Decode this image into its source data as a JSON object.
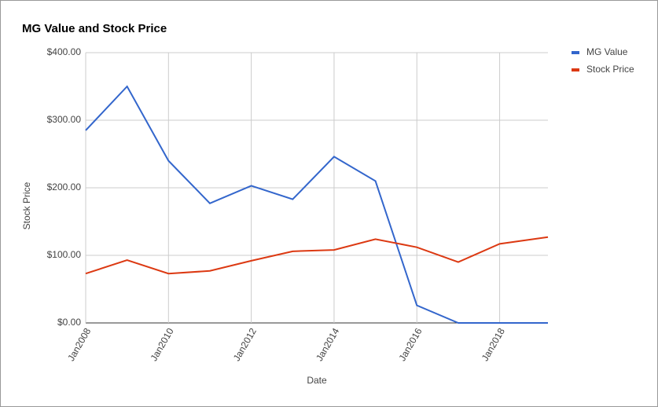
{
  "chart_data": {
    "type": "line",
    "title": "MG Value and Stock Price",
    "x_label": "Date",
    "y_label": "Stock Price",
    "x": [
      "2008-01",
      "2009-01",
      "2010-01",
      "2011-01",
      "2012-01",
      "2013-01",
      "2014-01",
      "2015-01",
      "2016-01",
      "2017-01",
      "2018-01",
      "2019-03"
    ],
    "series": [
      {
        "name": "MG Value",
        "color": "#3366cc",
        "values": [
          285,
          350,
          240,
          177,
          203,
          183,
          246,
          210,
          26,
          0,
          0,
          0
        ]
      },
      {
        "name": "Stock Price",
        "color": "#dc3912",
        "values": [
          73,
          93,
          73,
          77,
          92,
          106,
          108,
          124,
          112,
          90,
          117,
          127
        ]
      }
    ],
    "xlim": [
      "2008-01",
      "2019-03"
    ],
    "xticks": [
      {
        "value": "2008-01",
        "label": "Jan2008"
      },
      {
        "value": "2010-01",
        "label": "Jan2010"
      },
      {
        "value": "2012-01",
        "label": "Jan2012"
      },
      {
        "value": "2014-01",
        "label": "Jan2014"
      },
      {
        "value": "2016-01",
        "label": "Jan2016"
      },
      {
        "value": "2018-01",
        "label": "Jan2018"
      }
    ],
    "ylim": [
      0,
      400
    ],
    "yticks": [
      {
        "value": 0,
        "label": "$0.00"
      },
      {
        "value": 100,
        "label": "$100.00"
      },
      {
        "value": 200,
        "label": "$200.00"
      },
      {
        "value": 300,
        "label": "$300.00"
      },
      {
        "value": 400,
        "label": "$400.00"
      }
    ],
    "grid": true,
    "legend": "right"
  }
}
